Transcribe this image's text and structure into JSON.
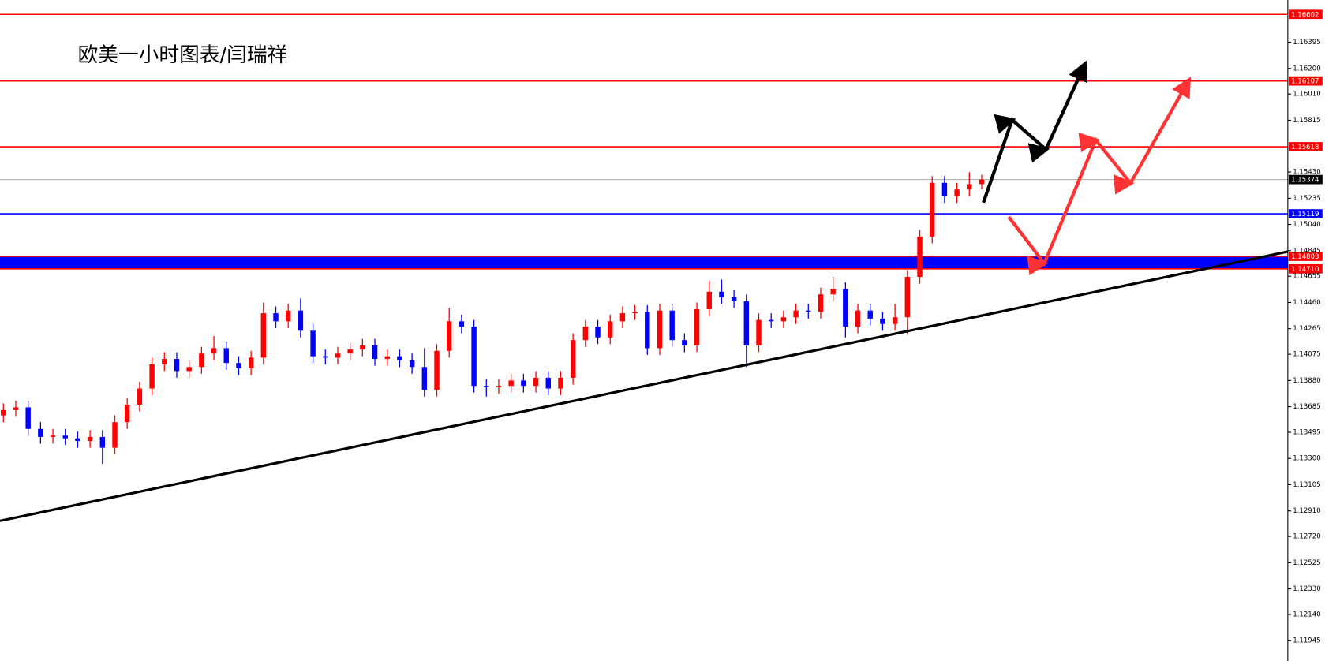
{
  "chart_data": {
    "type": "candlestick",
    "title": "欧美一小时图表/闫瑞祥",
    "up_color": "#ff0000",
    "down_color": "#0000ff",
    "ylim": [
      1.11794,
      1.16709
    ],
    "yticks": [
      1.16395,
      {
        "value": 1.162,
        "label": "1.16200"
      },
      {
        "value": 1.1601,
        "label": "1.16010"
      },
      1.15815,
      {
        "value": 1.1543,
        "label": "1.15430"
      },
      1.15235,
      {
        "value": 1.1504,
        "label": "1.15040"
      },
      1.14845,
      1.14655,
      {
        "value": 1.1446,
        "label": "1.14460"
      },
      1.14265,
      1.14075,
      {
        "value": 1.1388,
        "label": "1.13880"
      },
      1.13685,
      1.13495,
      {
        "value": 1.133,
        "label": "1.13300"
      },
      1.13105,
      {
        "value": 1.1291,
        "label": "1.12910"
      },
      {
        "value": 1.1272,
        "label": "1.12720"
      },
      1.12525,
      {
        "value": 1.1233,
        "label": "1.12330"
      },
      {
        "value": 1.1214,
        "label": "1.12140"
      },
      1.11945
    ],
    "open": [
      1.1362,
      1.1366,
      1.1368,
      1.1352,
      1.1346,
      1.1347,
      1.1345,
      1.1343,
      1.1346,
      1.1338,
      1.1357,
      1.137,
      1.1382,
      1.14,
      1.1404,
      1.1395,
      1.1398,
      1.1408,
      1.1412,
      1.1401,
      1.1397,
      1.1405,
      1.1438,
      1.1432,
      1.144,
      1.1425,
      1.1406,
      1.1405,
      1.1408,
      1.1411,
      1.1414,
      1.1404,
      1.1406,
      1.1403,
      1.1398,
      1.1381,
      1.141,
      1.1432,
      1.1428,
      1.1384,
      1.1383,
      1.1384,
      1.1388,
      1.1384,
      1.139,
      1.1382,
      1.139,
      1.1418,
      1.1428,
      1.142,
      1.1432,
      1.1438,
      1.1439,
      1.1412,
      1.144,
      1.1418,
      1.1414,
      1.1441,
      1.1454,
      1.145,
      1.1447,
      1.1414,
      1.1433,
      1.1432,
      1.1435,
      1.144,
      1.1439,
      1.1452,
      1.1456,
      1.1428,
      1.144,
      1.1434,
      1.143,
      1.1435,
      1.1465,
      1.1495,
      1.1535,
      1.1525,
      1.153,
      1.1534
    ],
    "high": [
      1.1371,
      1.1373,
      1.1373,
      1.1357,
      1.1352,
      1.1352,
      1.135,
      1.1351,
      1.1351,
      1.1362,
      1.1375,
      1.1387,
      1.1405,
      1.1409,
      1.1409,
      1.1403,
      1.1413,
      1.1421,
      1.1417,
      1.1406,
      1.141,
      1.1446,
      1.1443,
      1.1445,
      1.1449,
      1.143,
      1.1411,
      1.1413,
      1.1416,
      1.1419,
      1.1419,
      1.1411,
      1.1411,
      1.1408,
      1.1412,
      1.1415,
      1.1442,
      1.1437,
      1.1433,
      1.1389,
      1.1389,
      1.1393,
      1.1393,
      1.1395,
      1.1395,
      1.1395,
      1.1423,
      1.1433,
      1.1433,
      1.1437,
      1.1443,
      1.1444,
      1.1444,
      1.1445,
      1.1445,
      1.1423,
      1.1446,
      1.1462,
      1.1463,
      1.1455,
      1.1452,
      1.1438,
      1.1438,
      1.144,
      1.1445,
      1.1445,
      1.1457,
      1.1465,
      1.1461,
      1.1445,
      1.1445,
      1.1439,
      1.1445,
      1.147,
      1.15,
      1.154,
      1.154,
      1.1535,
      1.1543,
      1.1541
    ],
    "low": [
      1.1357,
      1.1361,
      1.1347,
      1.1341,
      1.1341,
      1.134,
      1.1338,
      1.1338,
      1.1326,
      1.1333,
      1.1352,
      1.1365,
      1.1377,
      1.1395,
      1.139,
      1.139,
      1.1393,
      1.1403,
      1.1396,
      1.1392,
      1.1392,
      1.14,
      1.1427,
      1.1427,
      1.142,
      1.1401,
      1.14,
      1.14,
      1.1403,
      1.1406,
      1.1399,
      1.1399,
      1.1398,
      1.1393,
      1.1376,
      1.1376,
      1.1405,
      1.1423,
      1.1379,
      1.1376,
      1.1378,
      1.1379,
      1.1379,
      1.1379,
      1.1377,
      1.1377,
      1.1385,
      1.1413,
      1.1415,
      1.1415,
      1.1427,
      1.1433,
      1.1407,
      1.1407,
      1.1413,
      1.1409,
      1.1409,
      1.1436,
      1.1445,
      1.1442,
      1.1398,
      1.1409,
      1.1427,
      1.1427,
      1.143,
      1.1434,
      1.1434,
      1.1447,
      1.142,
      1.1423,
      1.1429,
      1.1425,
      1.1425,
      1.1422,
      1.146,
      1.149,
      1.152,
      1.152,
      1.1525,
      1.153
    ],
    "close": [
      1.1366,
      1.1368,
      1.1352,
      1.1346,
      1.1347,
      1.1345,
      1.1343,
      1.1346,
      1.1338,
      1.1357,
      1.137,
      1.1382,
      1.14,
      1.1404,
      1.1395,
      1.1398,
      1.1408,
      1.1412,
      1.1401,
      1.1397,
      1.1405,
      1.1438,
      1.1432,
      1.144,
      1.1425,
      1.1406,
      1.1405,
      1.1408,
      1.1411,
      1.1414,
      1.1404,
      1.1406,
      1.1403,
      1.1398,
      1.1381,
      1.141,
      1.1432,
      1.1428,
      1.1384,
      1.1383,
      1.1384,
      1.1388,
      1.1384,
      1.139,
      1.1382,
      1.139,
      1.1418,
      1.1428,
      1.142,
      1.1432,
      1.1438,
      1.1439,
      1.1412,
      1.144,
      1.1418,
      1.1414,
      1.1441,
      1.1454,
      1.145,
      1.1447,
      1.1414,
      1.1433,
      1.1432,
      1.1435,
      1.144,
      1.1439,
      1.1452,
      1.1456,
      1.1428,
      1.144,
      1.1434,
      1.143,
      1.1435,
      1.1465,
      1.1495,
      1.1535,
      1.1525,
      1.153,
      1.1534,
      1.15374
    ],
    "levels": [
      {
        "value": 1.16602,
        "color": "#ff0000"
      },
      {
        "value": 1.16107,
        "color": "#ff0000"
      },
      {
        "value": 1.15618,
        "color": "#ff0000"
      },
      {
        "value": 1.15374,
        "color": "#000000"
      },
      {
        "value": 1.15119,
        "color": "#0000ff"
      },
      {
        "value": 1.14803,
        "color": "#ff0000"
      },
      {
        "value": 1.1471,
        "label": "1.14710",
        "color": "#ff0000"
      }
    ],
    "band": [
      1.1471,
      1.14803
    ],
    "band_color": "#0000ff"
  }
}
